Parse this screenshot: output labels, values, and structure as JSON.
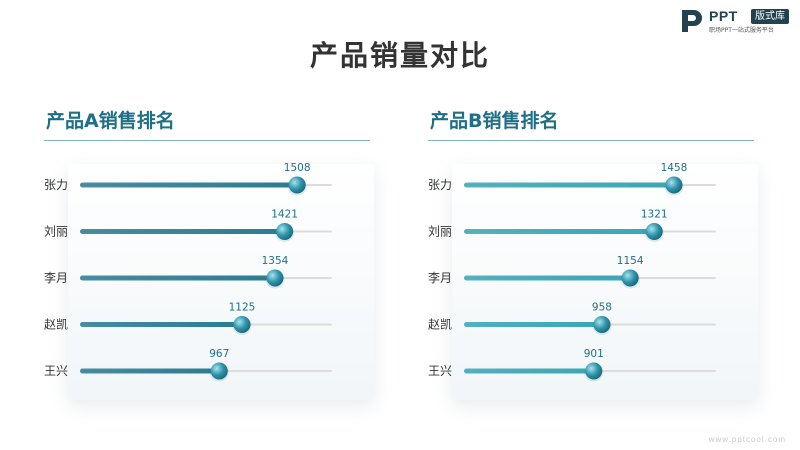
{
  "logo": {
    "brand": "PPT",
    "badge": "版式库",
    "tagline": "职场PPT一站式服务平台"
  },
  "title": "产品销量对比",
  "footer": "www.pptcool.com",
  "colors": {
    "accent": "#1f6f86",
    "trackA": "#2b7c92",
    "trackB": "#3aa6b5",
    "rail": "#dcdcdc"
  },
  "chart_data": [
    {
      "type": "bar",
      "title": "产品A销售排名",
      "categories": [
        "张力",
        "刘丽",
        "李月",
        "赵凯",
        "王兴"
      ],
      "values": [
        1508,
        1421,
        1354,
        1125,
        967
      ],
      "xlim": [
        0,
        1750
      ]
    },
    {
      "type": "bar",
      "title": "产品B销售排名",
      "categories": [
        "张力",
        "刘丽",
        "李月",
        "赵凯",
        "王兴"
      ],
      "values": [
        1458,
        1321,
        1154,
        958,
        901
      ],
      "xlim": [
        0,
        1750
      ]
    }
  ]
}
